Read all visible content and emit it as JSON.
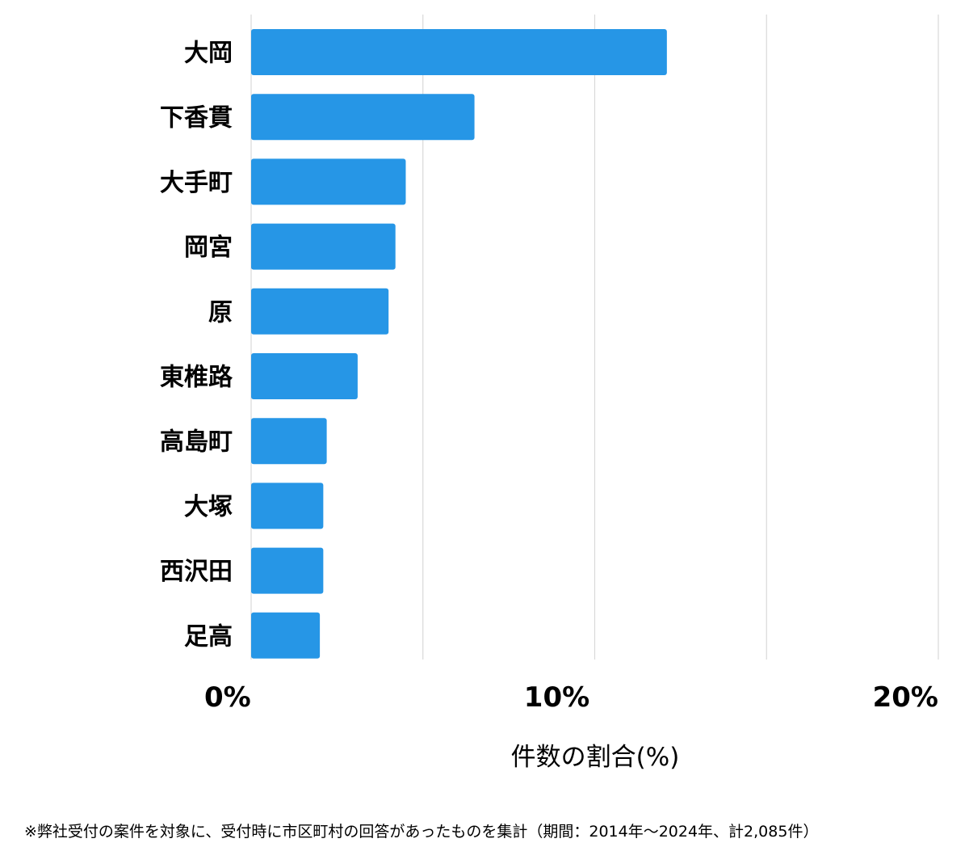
{
  "chart_data": {
    "type": "bar",
    "orientation": "horizontal",
    "categories": [
      "大岡",
      "下香貫",
      "大手町",
      "岡宮",
      "原",
      "東椎路",
      "高島町",
      "大塚",
      "西沢田",
      "足高"
    ],
    "values": [
      12.1,
      6.5,
      4.5,
      4.2,
      4.0,
      3.1,
      2.2,
      2.1,
      2.1,
      2.0
    ],
    "xlabel": "件数の割合(%)",
    "xlim": [
      0,
      20
    ],
    "ticks": [
      0,
      10,
      20
    ],
    "tick_labels": [
      "0%",
      "10%",
      "20%"
    ],
    "gridlines": [
      0,
      5,
      10,
      15,
      20
    ],
    "bar_color": "#2696e6",
    "grid": true
  },
  "footnote": "※弊社受付の案件を対象に、受付時に市区町村の回答があったものを集計（期間：2014年～2024年、計2,085件）"
}
